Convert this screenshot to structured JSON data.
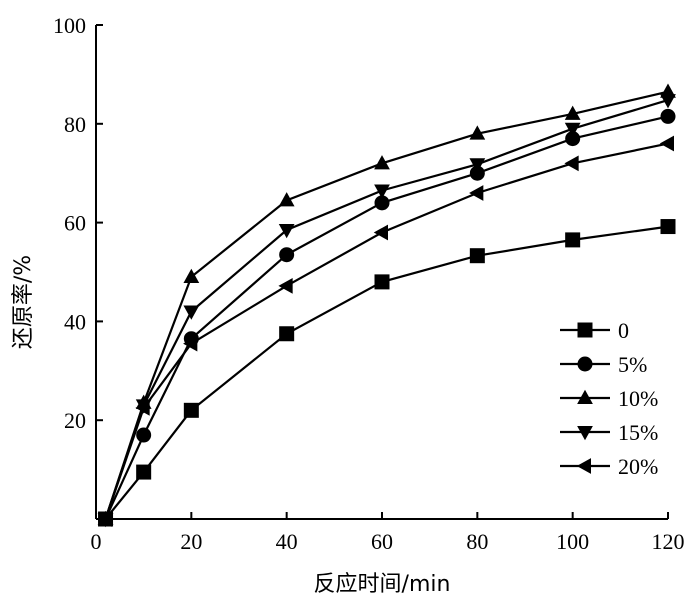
{
  "chart_data": {
    "type": "line",
    "title": "",
    "xlabel": "反应时间/min",
    "ylabel": "还原率/%",
    "xlim": [
      0,
      120
    ],
    "ylim": [
      0,
      100
    ],
    "xticks": [
      "0",
      "20",
      "40",
      "60",
      "80",
      "100",
      "120"
    ],
    "yticks": [
      "20",
      "40",
      "60",
      "80",
      "100"
    ],
    "grid": false,
    "legend_position": "right",
    "series": [
      {
        "name": "0",
        "marker": "square",
        "x": [
          2,
          10,
          20,
          40,
          60,
          80,
          100,
          120
        ],
        "values": [
          0,
          9.5,
          22,
          37.5,
          48,
          53.3,
          56.5,
          59.2
        ]
      },
      {
        "name": "5%",
        "marker": "circle",
        "x": [
          2,
          10,
          20,
          40,
          60,
          80,
          100,
          120
        ],
        "values": [
          0,
          17,
          36.5,
          53.5,
          64,
          70,
          77,
          81.5
        ]
      },
      {
        "name": "10%",
        "marker": "triangle-up",
        "x": [
          2,
          10,
          20,
          40,
          60,
          80,
          100,
          120
        ],
        "values": [
          0,
          23.5,
          49,
          64.5,
          72,
          78,
          82,
          86.5
        ]
      },
      {
        "name": "15%",
        "marker": "triangle-down",
        "x": [
          2,
          10,
          20,
          40,
          60,
          80,
          100,
          120
        ],
        "values": [
          0,
          23,
          42,
          58.5,
          66.5,
          71.8,
          79,
          84.8
        ]
      },
      {
        "name": "20%",
        "marker": "triangle-left",
        "x": [
          2,
          10,
          20,
          40,
          60,
          80,
          100,
          120
        ],
        "values": [
          0,
          22.5,
          35.5,
          47.2,
          58,
          66,
          72,
          76
        ]
      }
    ]
  }
}
